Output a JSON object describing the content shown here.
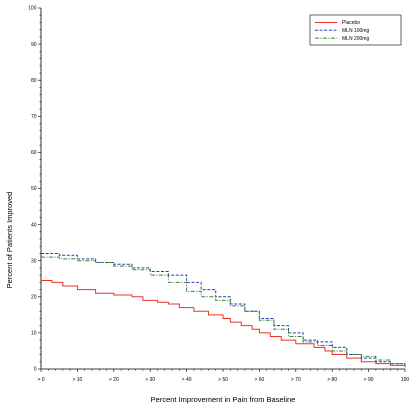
{
  "chart_data": {
    "type": "line",
    "title": "",
    "xlabel": "Percent Improvement in Pain from Baseline",
    "ylabel": "Percent of Patients Improved",
    "xlim": [
      0,
      100
    ],
    "ylim": [
      0,
      100
    ],
    "x_ticks": [
      {
        "value": 0,
        "label": "> 0"
      },
      {
        "value": 10,
        "label": "> 10"
      },
      {
        "value": 20,
        "label": "> 20"
      },
      {
        "value": 30,
        "label": "> 30"
      },
      {
        "value": 40,
        "label": "> 40"
      },
      {
        "value": 50,
        "label": "> 50"
      },
      {
        "value": 60,
        "label": "> 60"
      },
      {
        "value": 70,
        "label": "> 70"
      },
      {
        "value": 80,
        "label": "> 80"
      },
      {
        "value": 90,
        "label": "> 90"
      },
      {
        "value": 100,
        "label": "100"
      }
    ],
    "y_ticks": [
      0,
      10,
      20,
      30,
      40,
      50,
      60,
      70,
      80,
      90,
      100
    ],
    "grid": false,
    "legend_position": "top-right",
    "series": [
      {
        "name": "Placebo",
        "color": "#e8332a",
        "dash": "solid",
        "x": [
          0,
          3,
          6,
          10,
          15,
          20,
          25,
          28,
          32,
          35,
          38,
          42,
          46,
          50,
          52,
          55,
          58,
          60,
          63,
          66,
          70,
          75,
          78,
          80,
          84,
          88,
          92,
          96,
          100
        ],
        "y": [
          24.5,
          24,
          23,
          22,
          21,
          20.5,
          20,
          19,
          18.5,
          18,
          17,
          16,
          15,
          14,
          13,
          12,
          11,
          10,
          9,
          8,
          7,
          6,
          5,
          4,
          3,
          2,
          1.5,
          1,
          0.5
        ]
      },
      {
        "name": "MLN 100mg",
        "color": "#2b3fa8",
        "dash": "dashed",
        "x": [
          0,
          5,
          10,
          15,
          20,
          25,
          30,
          35,
          40,
          44,
          48,
          52,
          56,
          60,
          64,
          68,
          72,
          76,
          80,
          84,
          88,
          92,
          96,
          100
        ],
        "y": [
          32,
          31.5,
          30.5,
          29.5,
          29,
          28,
          27,
          26,
          24,
          22,
          20,
          18,
          16,
          14,
          12,
          10,
          8,
          7.5,
          6,
          4,
          3,
          2,
          1.5,
          1
        ]
      },
      {
        "name": "MLN 200mg",
        "color": "#2e8b2e",
        "dash": "dashdot",
        "x": [
          0,
          5,
          10,
          15,
          20,
          25,
          30,
          35,
          40,
          44,
          48,
          52,
          56,
          60,
          64,
          68,
          72,
          76,
          80,
          84,
          88,
          92,
          96,
          100
        ],
        "y": [
          31,
          30.5,
          30,
          29.5,
          28.5,
          27.5,
          26,
          24,
          21.5,
          20,
          19,
          17.5,
          16,
          13.5,
          11,
          9,
          7.5,
          6.5,
          5,
          4,
          3.5,
          2.5,
          1.5,
          0.5
        ]
      }
    ]
  }
}
